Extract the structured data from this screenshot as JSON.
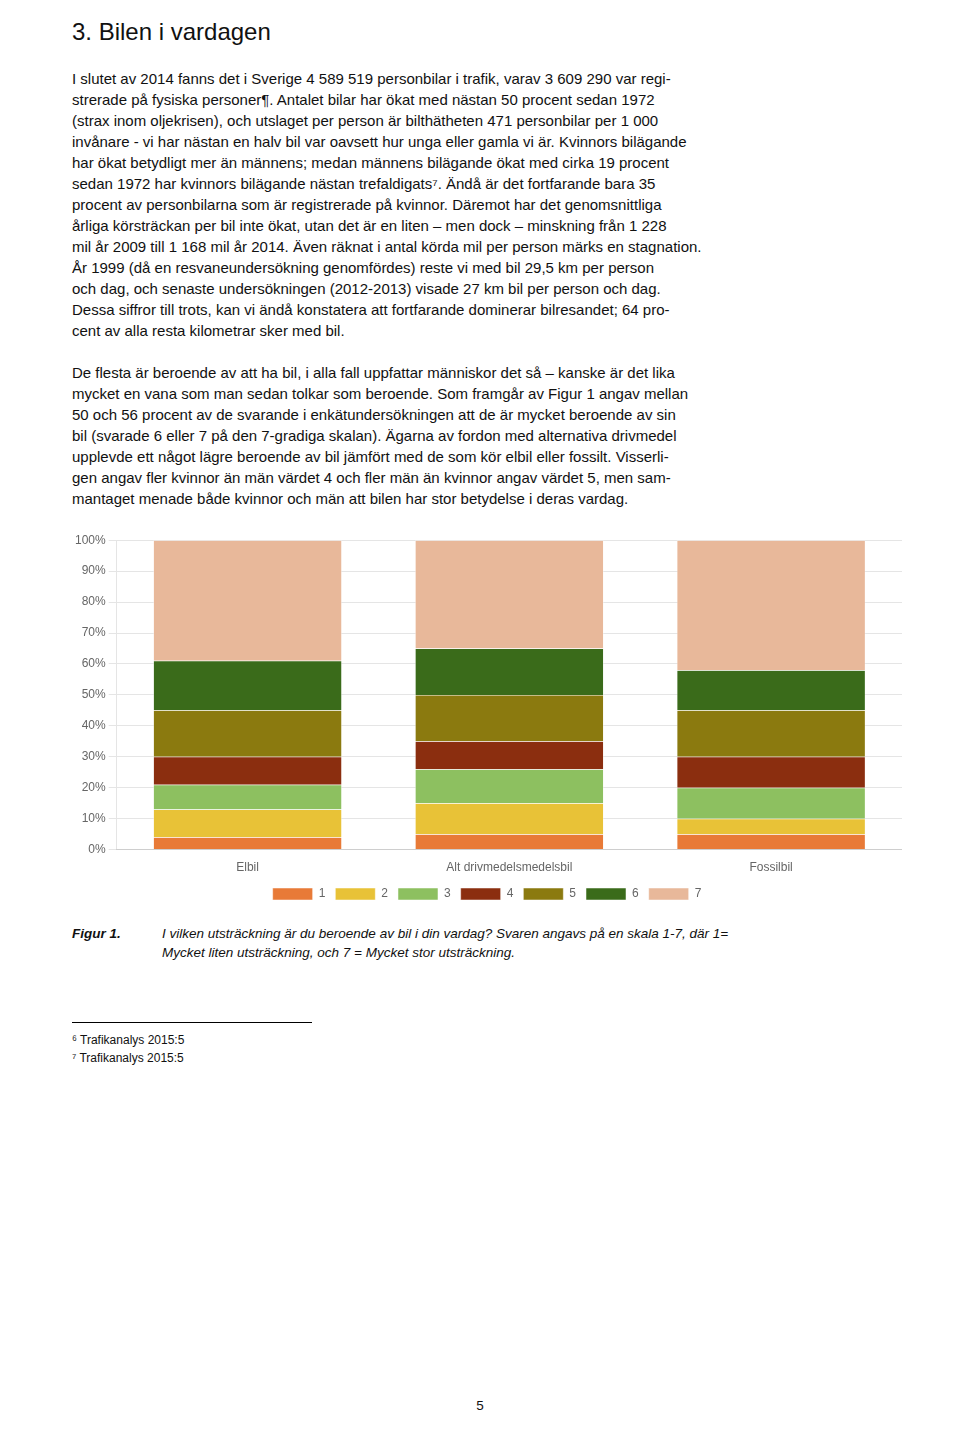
{
  "heading": "3.  Bilen i vardagen",
  "paragraphs": [
    [
      "I slutet av 2014 fanns det i Sverige 4 589 519 personbilar i trafik, varav 3 609 290 var regi-",
      "strerade på fysiska personer¶. Antalet bilar har ökat med nästan 50 procent sedan 1972",
      "(strax inom oljekrisen), och utslaget per person är bilthätheten 471 personbilar per 1 000",
      "invånare - vi har nästan en halv bil var oavsett hur unga eller gamla vi är. Kvinnors bilägande",
      "har ökat betydligt mer än männens; medan männens bilägande ökat med cirka 19 procent",
      "sedan 1972 har kvinnors bilägande nästan trefaldigats⁷. Ändå är det fortfarande bara 35",
      "procent av personbilarna som är registrerade på kvinnor. Däremot har det genomsnittliga",
      "årliga körsträckan per bil inte ökat, utan det är en liten – men dock – minskning från 1 228",
      "mil år 2009 till 1 168 mil år 2014. Även räknat i antal körda mil per person märks en stagnation.",
      "År 1999 (då en resvaneundersökning genomfördes) reste vi med bil 29,5 km per person",
      "och dag, och senaste undersökningen (2012-2013) visade 27 km bil per person och dag.",
      "Dessa siffror till trots, kan vi ändå konstatera att fortfarande dominerar bilresandet; 64 pro-",
      "cent av alla resta kilometrar sker med bil."
    ],
    [
      "De flesta är beroende av att ha bil, i alla fall uppfattar människor det så – kanske är det lika",
      "mycket en vana som man sedan tolkar som beroende. Som framgår av Figur 1 angav mellan",
      "50 och 56 procent av de svarande i enkätundersökningen att de är mycket beroende av sin",
      "bil (svarade 6 eller 7 på den 7-gradiga skalan). Ägarna av fordon med alternativa drivmedel",
      "upplevde ett något lägre beroende av bil jämfört med de som kör elbil eller fossilt. Visserli-",
      "gen angav fler kvinnor än män värdet 4 och fler män än kvinnor angav värdet 5, men sam-",
      "mantaget menade både kvinnor och män att bilen har stor betydelse i deras vardag."
    ]
  ],
  "figure_label": "Figur 1.",
  "caption_lines": [
    "I vilken utsträckning är du beroende av bil i din vardag? Svaren angavs på en skala 1-7, där 1=",
    "Mycket liten utsträckning, och 7 = Mycket stor utsträckning."
  ],
  "footnotes": [
    "⁶ Trafikanalys 2015:5",
    "⁷ Trafikanalys 2015:5"
  ],
  "page_number": "5",
  "chart_data": {
    "type": "bar",
    "stacked": true,
    "categories": [
      "Elbil",
      "Alt drivmedelsmedelsbil",
      "Fossilbil"
    ],
    "series": [
      {
        "name": "1",
        "color": "#E87A37",
        "values": [
          4,
          5,
          5
        ]
      },
      {
        "name": "2",
        "color": "#E8C237",
        "values": [
          9,
          10,
          5
        ]
      },
      {
        "name": "3",
        "color": "#8DC060",
        "values": [
          8,
          11,
          10
        ]
      },
      {
        "name": "4",
        "color": "#8B2E0F",
        "values": [
          9,
          9,
          10
        ]
      },
      {
        "name": "5",
        "color": "#8B7A0F",
        "values": [
          15,
          15,
          15
        ]
      },
      {
        "name": "6",
        "color": "#3A6B1A",
        "values": [
          16,
          15,
          13
        ]
      },
      {
        "name": "7",
        "color": "#E8B89A",
        "values": [
          39,
          35,
          42
        ]
      }
    ],
    "ylim": [
      0,
      100
    ],
    "yticks": [
      {
        "value": 0,
        "label": "0%"
      },
      {
        "value": 10,
        "label": "10%"
      },
      {
        "value": 20,
        "label": "20%"
      },
      {
        "value": 30,
        "label": "30%"
      },
      {
        "value": 40,
        "label": "40%"
      },
      {
        "value": 50,
        "label": "50%"
      },
      {
        "value": 60,
        "label": "60%"
      },
      {
        "value": 70,
        "label": "70%"
      },
      {
        "value": 80,
        "label": "80%"
      },
      {
        "value": 90,
        "label": "90%"
      },
      {
        "value": 100,
        "label": "100%"
      }
    ],
    "grid": true,
    "legend": "bottom"
  }
}
